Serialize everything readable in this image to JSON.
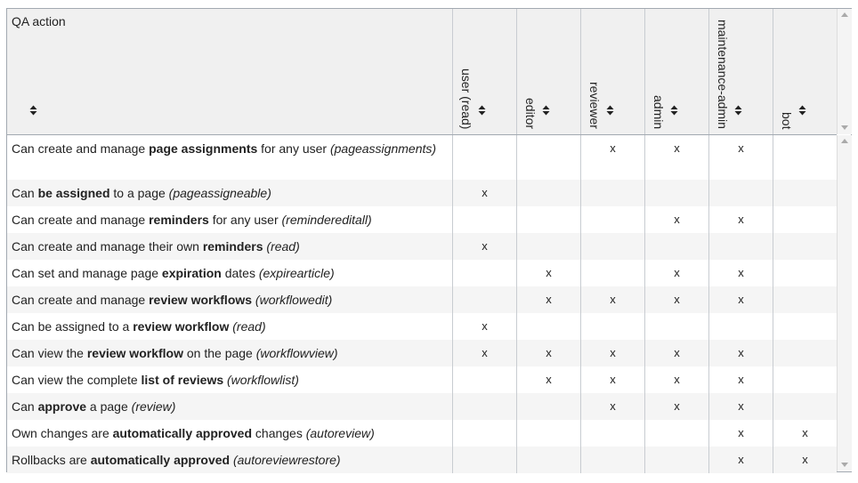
{
  "header": {
    "title": "QA action",
    "columns": [
      "user (read)",
      "editor",
      "reviewer",
      "admin",
      "maintenance-admin",
      "bot"
    ]
  },
  "rows": [
    {
      "action": [
        {
          "text": "Can create and manage "
        },
        {
          "text": "page assignments",
          "style": "bold"
        },
        {
          "text": " for any user "
        },
        {
          "text": "(pageassignments)",
          "style": "italic"
        }
      ],
      "cells": [
        null,
        null,
        "x",
        "x",
        "x",
        null
      ]
    },
    {
      "action": [
        {
          "text": "Can "
        },
        {
          "text": "be assigned",
          "style": "bold"
        },
        {
          "text": " to a page "
        },
        {
          "text": "(pageassigneable)",
          "style": "italic"
        }
      ],
      "cells": [
        "x",
        null,
        null,
        null,
        null,
        null
      ]
    },
    {
      "action": [
        {
          "text": "Can create and manage "
        },
        {
          "text": "reminders",
          "style": "bold"
        },
        {
          "text": " for any user "
        },
        {
          "text": "(remindereditall)",
          "style": "italic"
        }
      ],
      "cells": [
        null,
        null,
        null,
        "x",
        "x",
        null
      ]
    },
    {
      "action": [
        {
          "text": "Can create and manage their own "
        },
        {
          "text": "reminders",
          "style": "bold"
        },
        {
          "text": " (read)",
          "style": "italic"
        }
      ],
      "cells": [
        "x",
        null,
        null,
        null,
        null,
        null
      ]
    },
    {
      "action": [
        {
          "text": "Can set and manage page "
        },
        {
          "text": "expiration",
          "style": "bold"
        },
        {
          "text": " dates "
        },
        {
          "text": "(expirearticle)",
          "style": "italic"
        }
      ],
      "cells": [
        null,
        "x",
        null,
        "x",
        "x",
        null
      ]
    },
    {
      "action": [
        {
          "text": "Can create and manage "
        },
        {
          "text": "review workflows",
          "style": "bold"
        },
        {
          "text": " (workflowedit)",
          "style": "italic"
        }
      ],
      "cells": [
        null,
        "x",
        "x",
        "x",
        "x",
        null
      ]
    },
    {
      "action": [
        {
          "text": "Can be assigned to a "
        },
        {
          "text": "review workflow",
          "style": "bold"
        },
        {
          "text": " (read)",
          "style": "italic"
        }
      ],
      "cells": [
        "x",
        null,
        null,
        null,
        null,
        null
      ]
    },
    {
      "action": [
        {
          "text": "Can view the "
        },
        {
          "text": "review workflow",
          "style": "bold"
        },
        {
          "text": " on the page "
        },
        {
          "text": "(workflowview)",
          "style": "italic"
        }
      ],
      "cells": [
        "x",
        "x",
        "x",
        "x",
        "x",
        null
      ]
    },
    {
      "action": [
        {
          "text": "Can view the complete "
        },
        {
          "text": "list of reviews",
          "style": "bold"
        },
        {
          "text": " (workflowlist)",
          "style": "italic"
        }
      ],
      "cells": [
        null,
        "x",
        "x",
        "x",
        "x",
        null
      ]
    },
    {
      "action": [
        {
          "text": "Can "
        },
        {
          "text": "approve",
          "style": "bold"
        },
        {
          "text": " a page "
        },
        {
          "text": "(review)",
          "style": "italic"
        }
      ],
      "cells": [
        null,
        null,
        "x",
        "x",
        "x",
        null
      ]
    },
    {
      "action": [
        {
          "text": "Own changes are "
        },
        {
          "text": "automatically approved",
          "style": "bold"
        },
        {
          "text": " changes "
        },
        {
          "text": "(autoreview)",
          "style": "italic"
        }
      ],
      "cells": [
        null,
        null,
        null,
        null,
        "x",
        "x"
      ]
    },
    {
      "action": [
        {
          "text": "Rollbacks are "
        },
        {
          "text": "automatically approved",
          "style": "bold"
        },
        {
          "text": " (autoreviewrestore)",
          "style": "italic"
        }
      ],
      "cells": [
        null,
        null,
        null,
        null,
        "x",
        "x"
      ]
    }
  ]
}
